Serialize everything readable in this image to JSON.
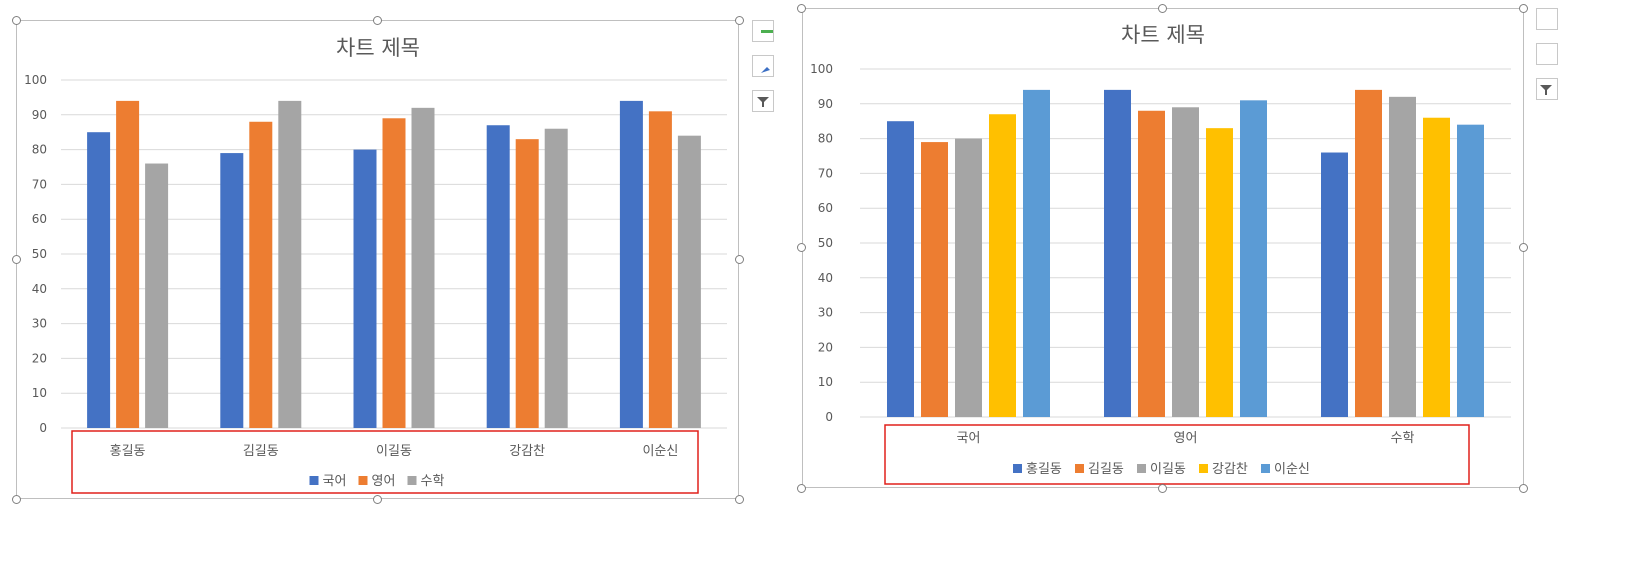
{
  "colors": {
    "frame_border": "#bfbfbf",
    "gridline": "#d9d9d9",
    "text": "#595959",
    "highlight_box": "#e0201b",
    "handle": "#7f7f7f"
  },
  "chart_data": [
    {
      "type": "bar",
      "title": "차트 제목",
      "xlabel": "",
      "ylabel": "",
      "categories": [
        "홍길동",
        "김길동",
        "이길동",
        "강감찬",
        "이순신"
      ],
      "series": [
        {
          "name": "국어",
          "color": "#4472c4",
          "values": [
            85,
            79,
            80,
            87,
            94
          ]
        },
        {
          "name": "영어",
          "color": "#ed7d31",
          "values": [
            94,
            88,
            89,
            83,
            91
          ]
        },
        {
          "name": "수학",
          "color": "#a5a5a5",
          "values": [
            76,
            94,
            92,
            86,
            84
          ]
        }
      ],
      "ylim": [
        0,
        100
      ],
      "yticks": [
        0,
        10,
        20,
        30,
        40,
        50,
        60,
        70,
        80,
        90,
        100
      ],
      "grid": true,
      "legend_position": "bottom"
    },
    {
      "type": "bar",
      "title": "차트 제목",
      "xlabel": "",
      "ylabel": "",
      "categories": [
        "국어",
        "영어",
        "수학"
      ],
      "series": [
        {
          "name": "홍길동",
          "color": "#4472c4",
          "values": [
            85,
            94,
            76
          ]
        },
        {
          "name": "김길동",
          "color": "#ed7d31",
          "values": [
            79,
            88,
            94
          ]
        },
        {
          "name": "이길동",
          "color": "#a5a5a5",
          "values": [
            80,
            89,
            92
          ]
        },
        {
          "name": "강감찬",
          "color": "#ffc000",
          "values": [
            87,
            83,
            86
          ]
        },
        {
          "name": "이순신",
          "color": "#5b9bd5",
          "values": [
            94,
            91,
            84
          ]
        }
      ],
      "ylim": [
        0,
        100
      ],
      "yticks": [
        0,
        10,
        20,
        30,
        40,
        50,
        60,
        70,
        80,
        90,
        100
      ],
      "grid": true,
      "legend_position": "bottom"
    }
  ]
}
